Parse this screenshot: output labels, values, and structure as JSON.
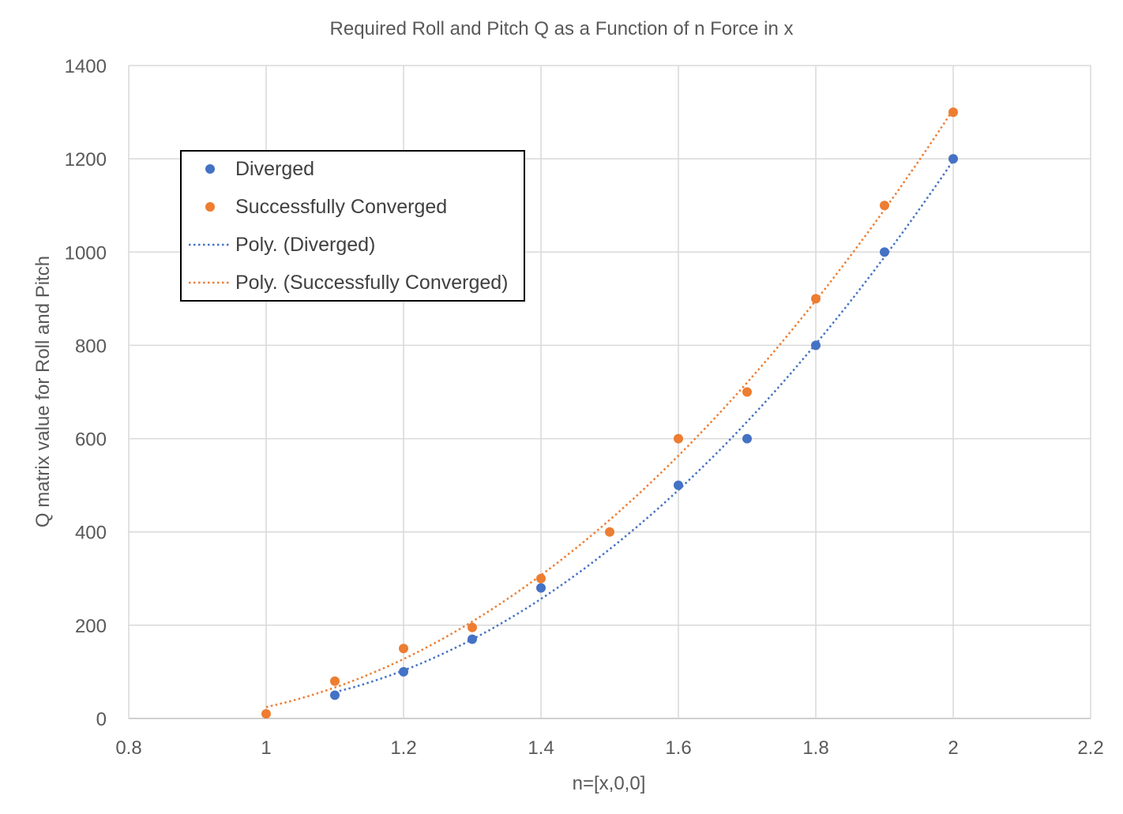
{
  "chart_data": {
    "type": "scatter",
    "title": "Required Roll and Pitch Q as a Function of n Force in x",
    "xlabel": "n=[x,0,0]",
    "ylabel": "Q matrix value for Roll and Pitch",
    "xlim": [
      0.8,
      2.2
    ],
    "ylim": [
      0,
      1400
    ],
    "xticks": [
      0.8,
      1,
      1.2,
      1.4,
      1.6,
      1.8,
      2,
      2.2
    ],
    "xtick_labels": [
      "0.8",
      "1",
      "1.2",
      "1.4",
      "1.6",
      "1.8",
      "2",
      "2.2"
    ],
    "yticks": [
      0,
      200,
      400,
      600,
      800,
      1000,
      1200,
      1400
    ],
    "ytick_labels": [
      "0",
      "200",
      "400",
      "600",
      "800",
      "1000",
      "1200",
      "1400"
    ],
    "grid": true,
    "legend_position": "upper-left",
    "series": [
      {
        "name": "Diverged",
        "color": "#4472C4",
        "marker": "circle",
        "x": [
          1.1,
          1.2,
          1.3,
          1.4,
          1.6,
          1.7,
          1.8,
          1.9,
          2.0
        ],
        "y": [
          50,
          100,
          170,
          280,
          500,
          600,
          800,
          1000,
          1200
        ]
      },
      {
        "name": "Successfully Converged",
        "color": "#ED7D31",
        "marker": "circle",
        "x": [
          1.0,
          1.1,
          1.2,
          1.3,
          1.4,
          1.5,
          1.6,
          1.7,
          1.8,
          1.9,
          2.0
        ],
        "y": [
          10,
          80,
          150,
          195,
          300,
          400,
          600,
          700,
          900,
          1100,
          1300
        ]
      }
    ],
    "trendlines": [
      {
        "name": "Poly. (Diverged)",
        "color": "#4472C4",
        "style": "dotted",
        "source": "Diverged",
        "type": "polynomial"
      },
      {
        "name": "Poly. (Successfully Converged)",
        "color": "#ED7D31",
        "style": "dotted",
        "source": "Successfully Converged",
        "type": "polynomial"
      }
    ]
  }
}
